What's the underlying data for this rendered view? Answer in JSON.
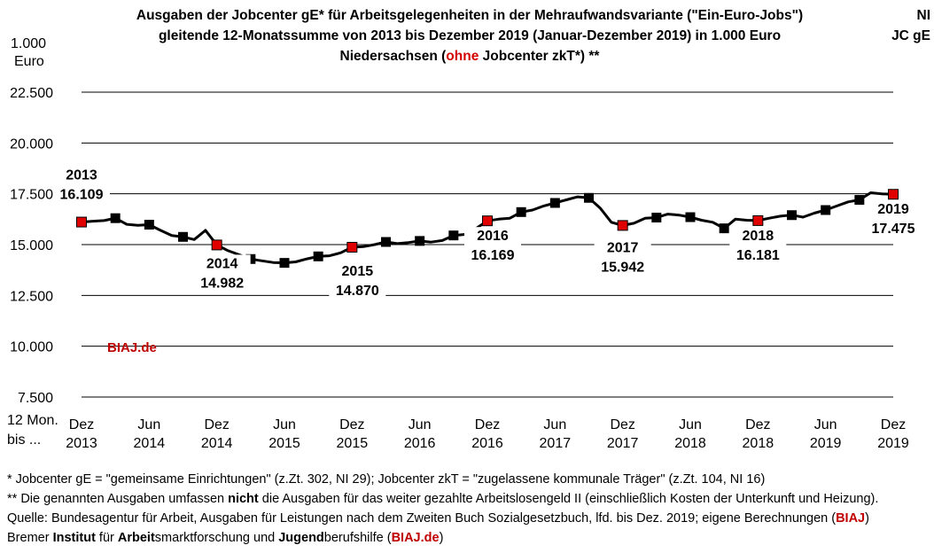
{
  "title": {
    "line1": "Ausgaben der Jobcenter gE* für Arbeitsgelegenheiten in der Mehraufwandsvariante (\"Ein-Euro-Jobs\")",
    "line2": "gleitende 12-Monatssumme von 2013 bis Dezember 2019 (Januar-Dezember 2019) in 1.000 Euro",
    "line3_pre": "Niedersachsen (",
    "line3_red": "ohne",
    "line3_post": " Jobcenter zkT*) **"
  },
  "corner": {
    "line1": "NI",
    "line2": "JC gE"
  },
  "y_unit": {
    "line1": "1.000",
    "line2": "Euro"
  },
  "x_head": {
    "line1": "12 Mon.",
    "line2": "bis ..."
  },
  "watermark": "BIAJ.de",
  "footnotes": {
    "n1": "*    Jobcenter gE = \"gemeinsame Einrichtungen\" (z.Zt. 302, NI 29); Jobcenter zkT = \"zugelassene kommunale Träger\" (z.Zt. 104, NI 16)",
    "n2_pre": "** Die genannten Ausgaben umfassen ",
    "n2_bold": "nicht",
    "n2_post": " die Ausgaben für das weiter gezahlte Arbeitslosengeld II (einschließlich Kosten der Unterkunft und Heizung).",
    "n3_pre": "Quelle: Bundesagentur für Arbeit, Ausgaben für Leistungen nach dem Zweiten Buch Sozialgesetzbuch, lfd. bis Dez. 2019; eigene Berechnungen (",
    "n3_red": "BIAJ",
    "n3_post": ")",
    "n4": [
      "Bremer ",
      "Institut",
      " für ",
      "Arbeit",
      "smarktforschung und ",
      "Jugend",
      "berufshilfe (",
      "BIAJ.de",
      ")"
    ]
  },
  "chart_data": {
    "type": "line",
    "ylim": [
      7500,
      22500
    ],
    "yticks": [
      7500,
      10000,
      12500,
      15000,
      17500,
      20000,
      22500
    ],
    "ytick_labels": [
      "7.500",
      "10.000",
      "12.500",
      "15.000",
      "17.500",
      "20.000",
      "22.500"
    ],
    "x_ticks": [
      {
        "m": "Dez",
        "y": "2013"
      },
      {
        "m": "Jun",
        "y": "2014"
      },
      {
        "m": "Dez",
        "y": "2014"
      },
      {
        "m": "Jun",
        "y": "2015"
      },
      {
        "m": "Dez",
        "y": "2015"
      },
      {
        "m": "Jun",
        "y": "2016"
      },
      {
        "m": "Dez",
        "y": "2016"
      },
      {
        "m": "Jun",
        "y": "2017"
      },
      {
        "m": "Dez",
        "y": "2017"
      },
      {
        "m": "Jun",
        "y": "2018"
      },
      {
        "m": "Dez",
        "y": "2018"
      },
      {
        "m": "Jun",
        "y": "2019"
      },
      {
        "m": "Dez",
        "y": "2019"
      }
    ],
    "months_from_dec_2013": [
      0,
      1,
      2,
      3,
      4,
      5,
      6,
      7,
      8,
      9,
      10,
      11,
      12,
      13,
      14,
      15,
      16,
      17,
      18,
      19,
      20,
      21,
      22,
      23,
      24,
      25,
      26,
      27,
      28,
      29,
      30,
      31,
      32,
      33,
      34,
      35,
      36,
      37,
      38,
      39,
      40,
      41,
      42,
      43,
      44,
      45,
      46,
      47,
      48,
      49,
      50,
      51,
      52,
      53,
      54,
      55,
      56,
      57,
      58,
      59,
      60,
      61,
      62,
      63,
      64,
      65,
      66,
      67,
      68,
      69,
      70,
      71,
      72
    ],
    "values": [
      16109,
      16150,
      16180,
      16300,
      16000,
      15950,
      15980,
      15700,
      15450,
      15380,
      15250,
      15700,
      14982,
      14700,
      14500,
      14290,
      14200,
      14120,
      14100,
      14150,
      14300,
      14420,
      14450,
      14600,
      14870,
      14900,
      15000,
      15130,
      15050,
      15100,
      15180,
      15120,
      15200,
      15450,
      15500,
      15800,
      16169,
      16250,
      16300,
      16600,
      16700,
      16900,
      17050,
      17200,
      17350,
      17300,
      16800,
      16100,
      15942,
      16050,
      16300,
      16330,
      16500,
      16450,
      16350,
      16200,
      16100,
      15800,
      16250,
      16200,
      16181,
      16300,
      16400,
      16450,
      16350,
      16550,
      16700,
      16900,
      17100,
      17200,
      17550,
      17500,
      17475
    ],
    "markers": [
      {
        "i": 0,
        "color": "red"
      },
      {
        "i": 3,
        "color": "black"
      },
      {
        "i": 6,
        "color": "black"
      },
      {
        "i": 9,
        "color": "black"
      },
      {
        "i": 12,
        "color": "red"
      },
      {
        "i": 15,
        "color": "black"
      },
      {
        "i": 18,
        "color": "black"
      },
      {
        "i": 21,
        "color": "black"
      },
      {
        "i": 24,
        "color": "red"
      },
      {
        "i": 27,
        "color": "black"
      },
      {
        "i": 30,
        "color": "black"
      },
      {
        "i": 33,
        "color": "black"
      },
      {
        "i": 36,
        "color": "red"
      },
      {
        "i": 39,
        "color": "black"
      },
      {
        "i": 42,
        "color": "black"
      },
      {
        "i": 45,
        "color": "black"
      },
      {
        "i": 48,
        "color": "red"
      },
      {
        "i": 51,
        "color": "black"
      },
      {
        "i": 54,
        "color": "black"
      },
      {
        "i": 57,
        "color": "black"
      },
      {
        "i": 60,
        "color": "red"
      },
      {
        "i": 63,
        "color": "black"
      },
      {
        "i": 66,
        "color": "black"
      },
      {
        "i": 69,
        "color": "black"
      },
      {
        "i": 72,
        "color": "red"
      }
    ],
    "annotations": [
      {
        "i": 0,
        "year": "2013",
        "value": "16.109"
      },
      {
        "i": 12,
        "year": "2014",
        "value": "14.982"
      },
      {
        "i": 24,
        "year": "2015",
        "value": "14.870"
      },
      {
        "i": 36,
        "year": "2016",
        "value": "16.169"
      },
      {
        "i": 48,
        "year": "2017",
        "value": "15.942"
      },
      {
        "i": 60,
        "year": "2018",
        "value": "16.181"
      },
      {
        "i": 72,
        "year": "2019",
        "value": "17.475"
      }
    ],
    "colors": {
      "line": "#000000",
      "marker_red": "#e00000",
      "marker_black": "#000000",
      "grid": "#000000"
    },
    "grid": true
  }
}
